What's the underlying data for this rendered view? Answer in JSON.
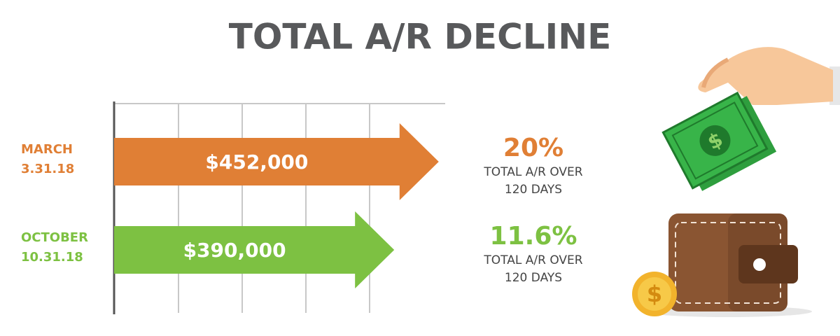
{
  "chart_data": {
    "type": "arrow-bar",
    "title": "TOTAL A/R DECLINE",
    "categories": [
      "MARCH",
      "OCTOBER"
    ],
    "category_dates": [
      "3.31.18",
      "10.31.18"
    ],
    "values": [
      452000,
      390000
    ],
    "value_labels": [
      "$452,000",
      "$390,000"
    ],
    "colors": [
      "#e07f35",
      "#7dc142"
    ],
    "xlim": [
      0,
      460000
    ],
    "percentages": [
      {
        "value": 20,
        "label": "20%"
      },
      {
        "value": 11.6,
        "label": "11.6%"
      }
    ],
    "notes": [
      [
        "TOTAL A/R OVER",
        "120 DAYS"
      ],
      [
        "TOTAL A/R OVER",
        "120 DAYS"
      ]
    ]
  }
}
